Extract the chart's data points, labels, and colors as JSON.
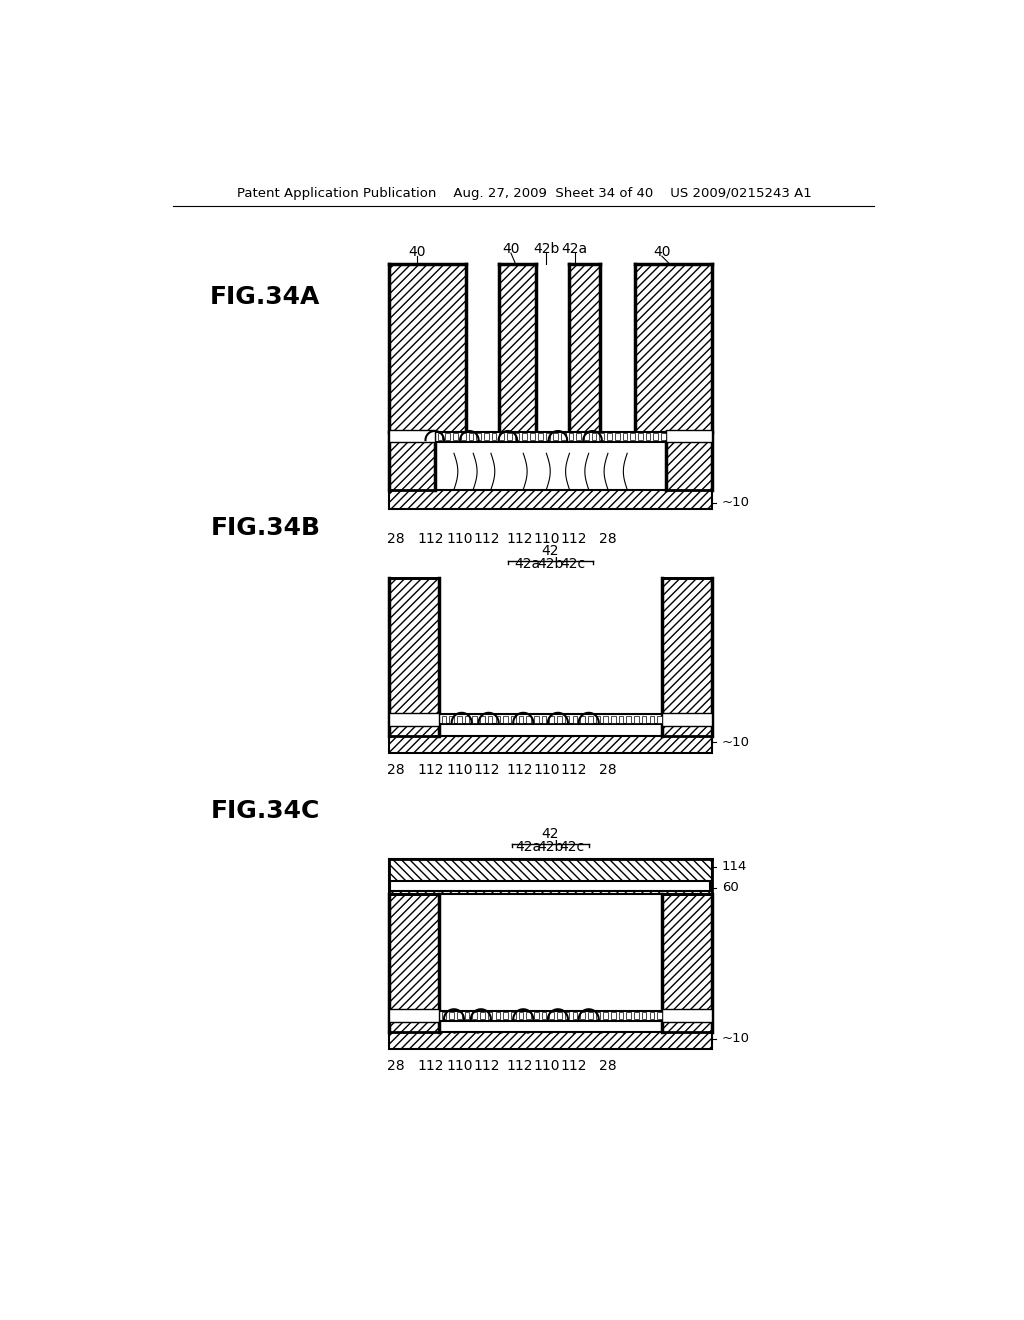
{
  "title": "Patent Application Publication    Aug. 27, 2009  Sheet 34 of 40    US 2009/0215243 A1",
  "bg_color": "#ffffff",
  "fig34A_label": "FIG.34A",
  "fig34B_label": "FIG.34B",
  "fig34C_label": "FIG.34C"
}
